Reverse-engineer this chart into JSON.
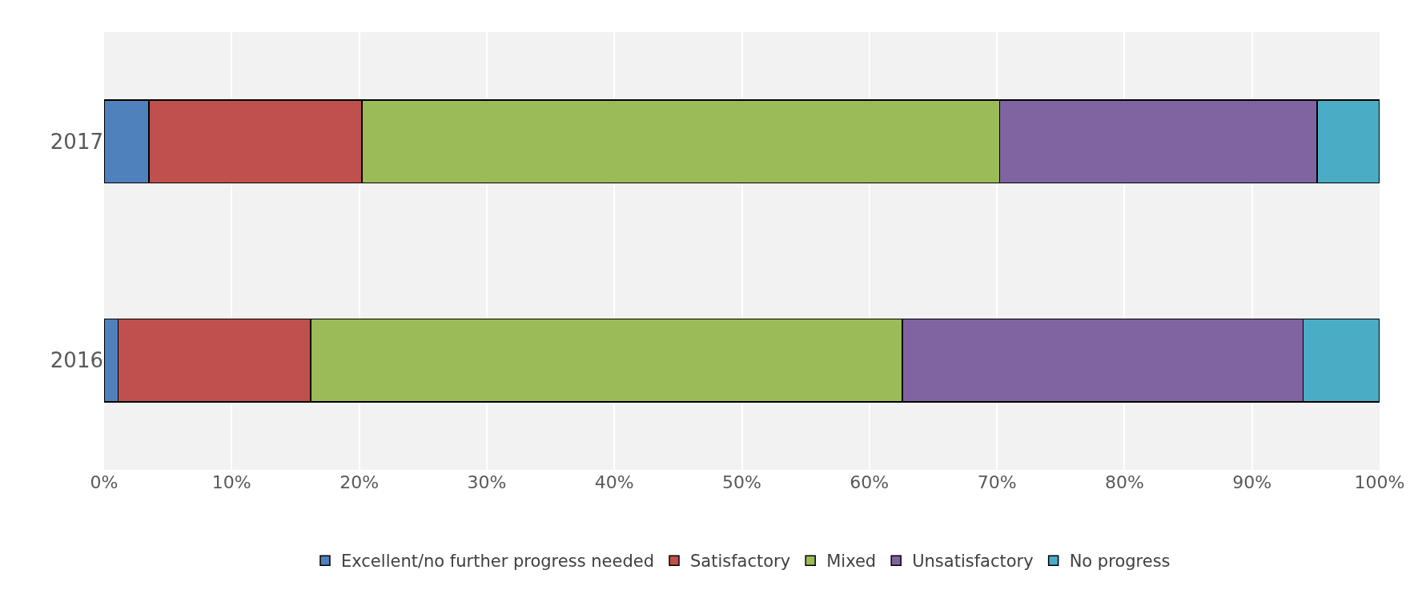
{
  "chart_data": {
    "type": "bar",
    "orientation": "horizontal",
    "stacked": true,
    "categories": [
      "2017",
      "2016"
    ],
    "series": [
      {
        "name": "Excellent/no further progress needed",
        "color": "#4f81bd",
        "values": [
          3.5,
          1.1
        ]
      },
      {
        "name": "Satisfactory",
        "color": "#c0504d",
        "values": [
          16.7,
          15.1
        ]
      },
      {
        "name": "Mixed",
        "color": "#9bbb59",
        "values": [
          50.0,
          46.4
        ]
      },
      {
        "name": "Unsatisfactory",
        "color": "#8064a2",
        "values": [
          24.9,
          31.4
        ]
      },
      {
        "name": "No progress",
        "color": "#4bacc6",
        "values": [
          4.9,
          6.0
        ]
      }
    ],
    "xlim": [
      0,
      100
    ],
    "xticks": [
      {
        "value": 0,
        "label": "0%"
      },
      {
        "value": 10,
        "label": "10%"
      },
      {
        "value": 20,
        "label": "20%"
      },
      {
        "value": 30,
        "label": "30%"
      },
      {
        "value": 40,
        "label": "40%"
      },
      {
        "value": 50,
        "label": "50%"
      },
      {
        "value": 60,
        "label": "60%"
      },
      {
        "value": 70,
        "label": "70%"
      },
      {
        "value": 80,
        "label": "80%"
      },
      {
        "value": 90,
        "label": "90%"
      },
      {
        "value": 100,
        "label": "100%"
      }
    ],
    "grid": "x",
    "legend": "bottom"
  }
}
